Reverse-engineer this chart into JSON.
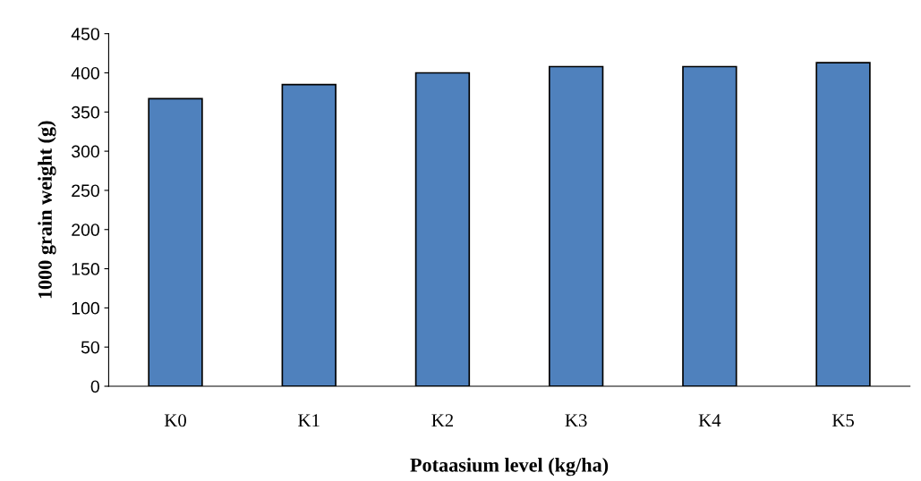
{
  "chart_data": {
    "type": "bar",
    "xlabel": "Potaasium level (kg/ha)",
    "ylabel": "1000 grain weight (g)",
    "categories": [
      "K0",
      "K1",
      "K2",
      "K3",
      "K4",
      "K5"
    ],
    "values": [
      367,
      385,
      400,
      408,
      408,
      413
    ],
    "color": "#4f81bd",
    "ylim": [
      0,
      450
    ],
    "yticks": [
      0,
      50,
      100,
      150,
      200,
      250,
      300,
      350,
      400,
      450
    ],
    "grid": false,
    "legend": false
  }
}
